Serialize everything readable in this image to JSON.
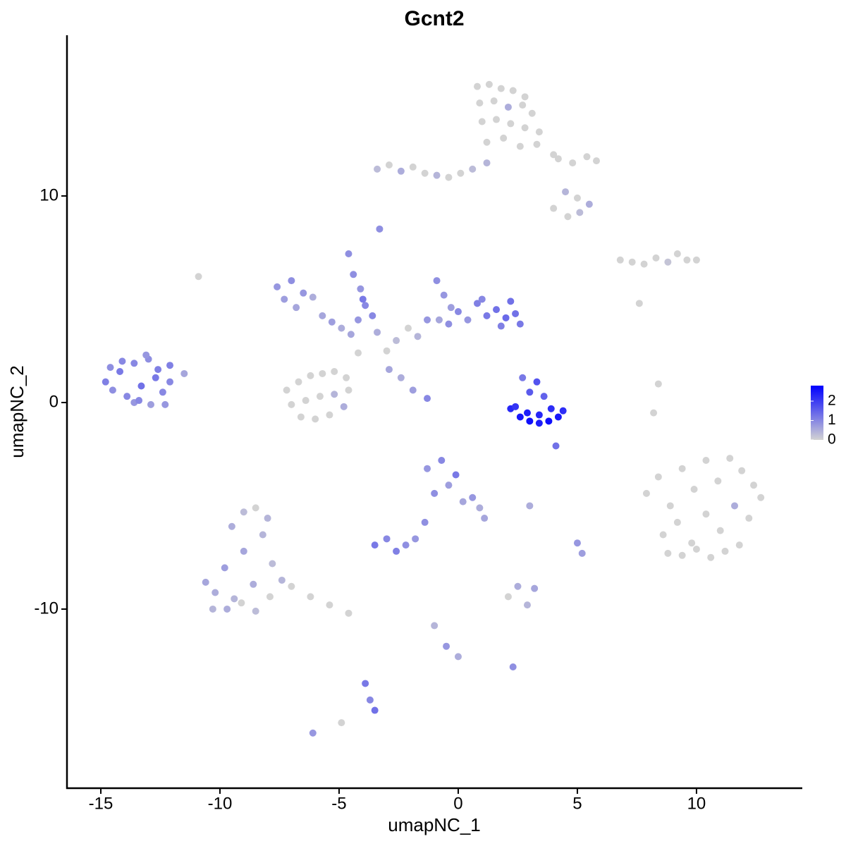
{
  "chart_data": {
    "type": "scatter",
    "title": "Gcnt2",
    "xlabel": "umapNC_1",
    "ylabel": "umapNC_2",
    "xlim": [
      -16.42,
      14.44
    ],
    "ylim": [
      -18.67,
      17.78
    ],
    "xticks": [
      -15,
      -10,
      -5,
      0,
      5,
      10
    ],
    "yticks": [
      -10,
      0,
      10
    ],
    "color_low": "#d3d3d3",
    "color_high": "#0000ff",
    "color_limits": [
      0,
      2.8
    ],
    "colorbar_ticks": [
      0,
      1,
      2
    ],
    "x": [
      0.8,
      1.3,
      1.8,
      2.3,
      2.8,
      0.9,
      1.5,
      2.1,
      2.7,
      3.1,
      1.0,
      1.6,
      2.2,
      2.8,
      3.4,
      1.2,
      1.9,
      2.6,
      3.3,
      4.0,
      -3.4,
      -2.9,
      -2.4,
      -1.9,
      -1.4,
      -0.9,
      -0.4,
      0.1,
      0.6,
      1.2,
      4.2,
      4.8,
      5.4,
      5.8,
      4.5,
      5.0,
      5.5,
      4.0,
      4.6,
      5.1,
      6.8,
      7.3,
      7.8,
      8.3,
      8.8,
      9.2,
      9.6,
      10.0,
      -14.8,
      -14.5,
      -14.2,
      -13.9,
      -13.6,
      -13.3,
      -13.0,
      -12.7,
      -12.4,
      -12.1,
      -14.6,
      -14.1,
      -13.6,
      -13.1,
      -12.6,
      -12.1,
      -13.4,
      -12.9,
      -12.3,
      -11.5,
      -7.2,
      -6.7,
      -6.2,
      -5.7,
      -5.2,
      -4.7,
      -7.0,
      -6.4,
      -5.8,
      -5.2,
      -4.6,
      -6.6,
      -6.0,
      -5.4,
      -4.8,
      -4.2,
      -7.6,
      -7.3,
      -7.0,
      -6.8,
      -6.5,
      -6.1,
      -5.7,
      -5.3,
      -4.9,
      -4.5,
      -4.2,
      -3.9,
      -4.6,
      -4.1,
      -3.4,
      -3.0,
      -2.6,
      -2.1,
      -1.7,
      -1.3,
      -0.9,
      -0.6,
      -0.3,
      -0.8,
      -0.4,
      0.0,
      0.4,
      0.8,
      1.2,
      1.6,
      2.0,
      2.4,
      2.6,
      1.8,
      2.2,
      1.0,
      -4.4,
      -4.0,
      -3.6,
      -2.9,
      -2.4,
      -1.9,
      -1.3,
      -3.3,
      2.2,
      2.6,
      3.0,
      3.4,
      3.8,
      4.2,
      4.4,
      2.4,
      2.9,
      3.4,
      3.9,
      3.0,
      3.3,
      3.6,
      2.7,
      4.1,
      7.9,
      8.4,
      8.9,
      9.4,
      9.9,
      10.4,
      10.9,
      11.4,
      11.9,
      12.4,
      8.6,
      9.2,
      9.8,
      10.4,
      11.0,
      11.6,
      12.2,
      12.7,
      8.8,
      9.4,
      10.0,
      10.6,
      11.2,
      11.8,
      -10.6,
      -10.2,
      -9.8,
      -9.4,
      -9.0,
      -8.6,
      -8.2,
      -7.8,
      -10.3,
      -9.7,
      -9.1,
      -8.5,
      -7.9,
      -7.4,
      -9.5,
      -9.0,
      -8.5,
      -8.0,
      -7.0,
      -6.2,
      -5.4,
      -4.6,
      -1.3,
      -1.0,
      -0.7,
      -0.4,
      -0.1,
      0.2,
      0.6,
      0.9,
      1.1,
      -1.4,
      -1.8,
      -3.5,
      -3.0,
      -2.6,
      -2.2,
      -3.9,
      -3.7,
      -3.5,
      -6.1,
      -4.9,
      2.1,
      2.5,
      2.9,
      3.2,
      -1.0,
      -0.5,
      0.0,
      2.3,
      5.0,
      5.2,
      3.0,
      8.4,
      8.2,
      -10.9,
      7.6
    ],
    "values": [
      15.3,
      15.4,
      15.2,
      15.1,
      14.8,
      14.5,
      14.6,
      14.3,
      14.4,
      14.0,
      13.6,
      13.7,
      13.5,
      13.3,
      13.1,
      12.6,
      12.8,
      12.4,
      12.5,
      12.0,
      11.3,
      11.5,
      11.2,
      11.4,
      11.1,
      11.0,
      10.9,
      11.1,
      11.3,
      11.6,
      11.8,
      11.6,
      11.9,
      11.7,
      10.2,
      9.9,
      9.6,
      9.4,
      9.0,
      9.2,
      6.9,
      6.8,
      6.7,
      7.0,
      6.8,
      7.2,
      6.9,
      6.9,
      1.0,
      0.6,
      1.5,
      0.3,
      1.9,
      0.8,
      2.1,
      1.2,
      0.5,
      1.8,
      1.7,
      2.0,
      0.0,
      2.3,
      1.6,
      1.0,
      0.1,
      -0.1,
      -0.1,
      1.4,
      0.6,
      1.0,
      1.3,
      1.4,
      1.5,
      1.2,
      -0.1,
      0.1,
      0.3,
      0.4,
      0.6,
      -0.7,
      -0.8,
      -0.6,
      -0.2,
      2.4,
      5.6,
      5.0,
      5.9,
      4.6,
      5.3,
      5.1,
      4.2,
      3.9,
      3.6,
      3.3,
      4.0,
      4.7,
      7.2,
      5.5,
      3.4,
      2.5,
      3.0,
      3.6,
      3.2,
      4.0,
      5.9,
      5.2,
      4.6,
      4.0,
      3.8,
      4.4,
      4.0,
      4.8,
      4.2,
      4.5,
      4.1,
      4.3,
      3.8,
      3.7,
      4.9,
      5.0,
      6.2,
      5.0,
      4.2,
      1.6,
      1.2,
      0.6,
      0.2,
      8.4,
      -0.3,
      -0.7,
      -0.9,
      -1.0,
      -0.9,
      -0.7,
      -0.4,
      -0.2,
      -0.5,
      -0.6,
      -0.3,
      0.5,
      1.0,
      0.3,
      1.2,
      -2.1,
      -4.4,
      -3.6,
      -5.0,
      -3.2,
      -4.2,
      -2.8,
      -3.8,
      -2.7,
      -3.3,
      -4.0,
      -6.4,
      -5.8,
      -6.8,
      -5.4,
      -6.2,
      -5.0,
      -5.6,
      -4.6,
      -7.3,
      -7.4,
      -7.1,
      -7.5,
      -7.2,
      -6.9,
      -8.7,
      -9.2,
      -8.0,
      -9.5,
      -7.2,
      -8.8,
      -6.4,
      -7.8,
      -10.0,
      -10.0,
      -9.7,
      -10.1,
      -9.4,
      -8.6,
      -6.0,
      -5.3,
      -5.1,
      -5.6,
      -8.9,
      -9.4,
      -9.8,
      -10.2,
      -3.2,
      -4.4,
      -2.8,
      -4.0,
      -3.5,
      -4.8,
      -4.6,
      -5.1,
      -5.6,
      -5.8,
      -6.6,
      -6.9,
      -6.6,
      -7.2,
      -6.9,
      -13.6,
      -14.4,
      -14.9,
      -16.0,
      -15.5,
      -9.4,
      -8.9,
      -9.8,
      -9.0,
      -10.8,
      -11.8,
      -12.3,
      -12.8,
      -6.8,
      -7.3,
      -5.0,
      0.9,
      -0.5,
      6.1,
      4.8
    ],
    "color_values": [
      0,
      0,
      0,
      0,
      0,
      0,
      0,
      0.5,
      0,
      0,
      0,
      0,
      0,
      0,
      0,
      0,
      0,
      0,
      0,
      0,
      0.3,
      0,
      0.5,
      0,
      0,
      0.4,
      0,
      0,
      0.3,
      0.4,
      0,
      0,
      0,
      0,
      0.4,
      0,
      0.5,
      0,
      0,
      0.3,
      0,
      0,
      0,
      0,
      0.2,
      0,
      0,
      0,
      1.1,
      0.9,
      1.2,
      1.0,
      1.0,
      1.3,
      0.9,
      1.2,
      1.0,
      1.1,
      0.9,
      1.0,
      0.8,
      0.8,
      1.1,
      1.0,
      1.0,
      0.7,
      0.8,
      0.6,
      0,
      0,
      0,
      0,
      0,
      0,
      0,
      0,
      0,
      0.4,
      0,
      0,
      0,
      0,
      0.5,
      0,
      0.8,
      0.7,
      0.9,
      0.6,
      0.8,
      0.5,
      0.6,
      0.7,
      0.5,
      0.6,
      0.8,
      1.0,
      0.9,
      0.8,
      0.5,
      0,
      0.3,
      0,
      0.4,
      0.8,
      0.9,
      0.8,
      0.7,
      0.6,
      0.9,
      1.0,
      0.8,
      1.1,
      1.2,
      1.3,
      1.4,
      1.3,
      1.2,
      1.1,
      1.3,
      1.0,
      0.9,
      1.2,
      1.0,
      0.6,
      0.5,
      0.7,
      1.0,
      0.9,
      2.3,
      2.5,
      2.6,
      2.4,
      2.6,
      2.5,
      2.2,
      2.1,
      2.4,
      2.3,
      2.2,
      1.6,
      1.7,
      1.5,
      1.2,
      1.3,
      0,
      0,
      0,
      0,
      0,
      0,
      0,
      0,
      0,
      0,
      0,
      0,
      0,
      0,
      0,
      0.5,
      0,
      0,
      0,
      0,
      0,
      0,
      0,
      0,
      0.6,
      0.5,
      0.7,
      0.4,
      0.6,
      0.5,
      0.4,
      0.3,
      0.4,
      0.5,
      0,
      0.3,
      0,
      0.4,
      0.5,
      0.3,
      0,
      0.4,
      0,
      0,
      0,
      0,
      0.8,
      0.9,
      1.0,
      0.7,
      1.2,
      0.6,
      0.8,
      0.5,
      0.6,
      0.9,
      0.8,
      1.2,
      1.0,
      1.1,
      0.9,
      1.2,
      1.0,
      1.3,
      0.8,
      0,
      0,
      0.5,
      0.4,
      0.6,
      0.4,
      0.8,
      0.5,
      0.9,
      0.8,
      0.7,
      0.5,
      0,
      0,
      0,
      0
    ]
  }
}
